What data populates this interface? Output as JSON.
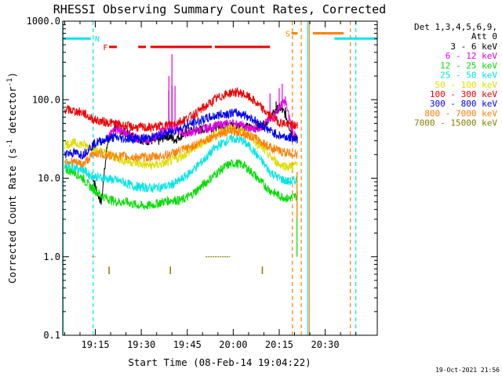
{
  "chart_data": {
    "type": "line",
    "title": "RHESSI Observing Summary Count Rates, Corrected",
    "xlabel": "Start Time (08-Feb-14 19:04:22)",
    "ylabel": "Corrected Count Rate (s⁻¹ detector⁻¹)",
    "ylabel_main": "Corrected Count Rate (s",
    "ylabel_sup1": "-1",
    "ylabel_mid": " detector",
    "ylabel_sup2": "-1",
    "ylabel_end": ")",
    "y_scale": "log",
    "ylim": [
      0.1,
      1000
    ],
    "xlim": [
      "19:04:22",
      "20:47:00"
    ],
    "x_range_minutes": [
      4.37,
      107.0
    ],
    "x_ticks": [
      {
        "m": 15,
        "label": "19:15"
      },
      {
        "m": 30,
        "label": "19:30"
      },
      {
        "m": 45,
        "label": "19:45"
      },
      {
        "m": 60,
        "label": "20:00"
      },
      {
        "m": 75,
        "label": "20:15"
      },
      {
        "m": 90,
        "label": "20:30"
      }
    ],
    "y_ticks": [
      {
        "v": 0.1,
        "label": "0.1"
      },
      {
        "v": 1,
        "label": "1.0"
      },
      {
        "v": 10,
        "label": "10.0"
      },
      {
        "v": 100,
        "label": "100.0"
      },
      {
        "v": 1000,
        "label": "1000.0"
      }
    ],
    "legend": {
      "placement": "right",
      "header1": "Det 1,3,4,5,6,9,",
      "header2": "Att 0"
    },
    "series": [
      {
        "name": "3 - 6 keV",
        "color": "#000000",
        "points": [
          [
            14,
            11
          ],
          [
            15,
            8
          ],
          [
            16,
            6
          ],
          [
            17,
            5
          ],
          [
            19,
            30
          ],
          [
            22,
            45
          ],
          [
            25,
            38
          ],
          [
            28,
            33
          ],
          [
            31,
            30
          ],
          [
            33,
            30
          ],
          [
            36,
            30
          ],
          [
            38,
            35
          ],
          [
            41,
            31
          ],
          [
            43,
            35
          ],
          [
            46,
            40
          ],
          [
            50,
            42
          ],
          [
            54,
            45
          ],
          [
            58,
            48
          ],
          [
            61,
            47
          ],
          [
            64,
            45
          ],
          [
            67,
            44
          ],
          [
            70,
            48
          ],
          [
            73,
            65
          ],
          [
            75,
            80
          ],
          [
            77,
            65
          ],
          [
            79,
            38
          ],
          [
            81,
            30
          ]
        ],
        "spikes": [
          [
            39,
            130
          ],
          [
            40,
            150
          ],
          [
            74,
            95
          ],
          [
            76,
            100
          ],
          [
            77,
            80
          ]
        ]
      },
      {
        "name": "6 - 12 keV",
        "color": "#e600e6",
        "points": [
          [
            19,
            35
          ],
          [
            22,
            42
          ],
          [
            25,
            38
          ],
          [
            28,
            33
          ],
          [
            31,
            30
          ],
          [
            34,
            32
          ],
          [
            37,
            40
          ],
          [
            40,
            45
          ],
          [
            44,
            37
          ],
          [
            48,
            40
          ],
          [
            52,
            44
          ],
          [
            56,
            48
          ],
          [
            60,
            50
          ],
          [
            63,
            46
          ],
          [
            66,
            42
          ],
          [
            69,
            45
          ],
          [
            71,
            52
          ],
          [
            73,
            60
          ],
          [
            75,
            80
          ],
          [
            77,
            95
          ],
          [
            79,
            45
          ],
          [
            81,
            28
          ]
        ],
        "spikes": [
          [
            39,
            200
          ],
          [
            40,
            380
          ],
          [
            41,
            150
          ],
          [
            75,
            140
          ],
          [
            76,
            160
          ],
          [
            77,
            110
          ],
          [
            72,
            120
          ]
        ]
      },
      {
        "name": "12 - 25 keV",
        "color": "#00dd00",
        "points": [
          [
            5,
            13
          ],
          [
            8,
            12
          ],
          [
            11,
            10
          ],
          [
            13,
            8
          ],
          [
            15,
            7
          ],
          [
            17,
            6
          ],
          [
            19,
            5.5
          ],
          [
            22,
            5
          ],
          [
            25,
            5
          ],
          [
            28,
            4.6
          ],
          [
            31,
            4.4
          ],
          [
            34,
            4.6
          ],
          [
            37,
            5
          ],
          [
            40,
            5.3
          ],
          [
            43,
            5.2
          ],
          [
            46,
            6
          ],
          [
            49,
            7.5
          ],
          [
            52,
            9.5
          ],
          [
            55,
            12
          ],
          [
            58,
            14.5
          ],
          [
            60,
            15.5
          ],
          [
            63,
            15
          ],
          [
            66,
            12
          ],
          [
            69,
            9
          ],
          [
            72,
            7
          ],
          [
            75,
            6
          ],
          [
            78,
            5.5
          ],
          [
            81,
            6
          ]
        ]
      },
      {
        "name": "25 - 50 keV",
        "color": "#00e5e5",
        "points": [
          [
            5,
            15
          ],
          [
            8,
            14
          ],
          [
            11,
            13
          ],
          [
            13,
            11
          ],
          [
            15,
            10.5
          ],
          [
            18,
            10
          ],
          [
            21,
            9.5
          ],
          [
            24,
            9
          ],
          [
            27,
            8
          ],
          [
            30,
            7.7
          ],
          [
            33,
            7.5
          ],
          [
            36,
            7.7
          ],
          [
            39,
            8
          ],
          [
            42,
            9
          ],
          [
            45,
            11
          ],
          [
            48,
            14
          ],
          [
            51,
            18
          ],
          [
            54,
            24
          ],
          [
            57,
            29
          ],
          [
            60,
            32
          ],
          [
            63,
            30
          ],
          [
            66,
            24
          ],
          [
            69,
            17
          ],
          [
            72,
            12
          ],
          [
            75,
            10
          ],
          [
            78,
            9
          ],
          [
            81,
            9.5
          ]
        ]
      },
      {
        "name": "50 - 100 keV",
        "color": "#dddd00",
        "points": [
          [
            5,
            27
          ],
          [
            8,
            28
          ],
          [
            11,
            27
          ],
          [
            13,
            25
          ],
          [
            15,
            23
          ],
          [
            18,
            21
          ],
          [
            21,
            19
          ],
          [
            24,
            17
          ],
          [
            27,
            16
          ],
          [
            30,
            15
          ],
          [
            33,
            14.5
          ],
          [
            36,
            15
          ],
          [
            39,
            16
          ],
          [
            42,
            18
          ],
          [
            45,
            21
          ],
          [
            48,
            25
          ],
          [
            51,
            30
          ],
          [
            54,
            36
          ],
          [
            57,
            41
          ],
          [
            60,
            43
          ],
          [
            63,
            40
          ],
          [
            66,
            33
          ],
          [
            69,
            25
          ],
          [
            72,
            19
          ],
          [
            75,
            15
          ],
          [
            78,
            14
          ],
          [
            81,
            15
          ]
        ]
      },
      {
        "name": "100 - 300 keV",
        "color": "#ee0000",
        "points": [
          [
            5,
            75
          ],
          [
            8,
            72
          ],
          [
            11,
            68
          ],
          [
            13,
            60
          ],
          [
            15,
            55
          ],
          [
            18,
            52
          ],
          [
            21,
            50
          ],
          [
            24,
            47
          ],
          [
            27,
            45
          ],
          [
            30,
            44
          ],
          [
            33,
            44
          ],
          [
            36,
            46
          ],
          [
            39,
            48
          ],
          [
            42,
            52
          ],
          [
            45,
            58
          ],
          [
            48,
            68
          ],
          [
            51,
            82
          ],
          [
            54,
            100
          ],
          [
            57,
            115
          ],
          [
            60,
            125
          ],
          [
            63,
            120
          ],
          [
            66,
            102
          ],
          [
            69,
            80
          ],
          [
            72,
            62
          ],
          [
            75,
            52
          ],
          [
            78,
            48
          ],
          [
            81,
            46
          ]
        ]
      },
      {
        "name": "300 - 800 keV",
        "color": "#0000ee",
        "points": [
          [
            5,
            21
          ],
          [
            8,
            21
          ],
          [
            11,
            20
          ],
          [
            13,
            24
          ],
          [
            15,
            28
          ],
          [
            18,
            31
          ],
          [
            21,
            33
          ],
          [
            24,
            32
          ],
          [
            27,
            32
          ],
          [
            30,
            32
          ],
          [
            33,
            33
          ],
          [
            36,
            35
          ],
          [
            39,
            38
          ],
          [
            42,
            42
          ],
          [
            45,
            47
          ],
          [
            48,
            52
          ],
          [
            51,
            57
          ],
          [
            54,
            62
          ],
          [
            57,
            66
          ],
          [
            60,
            68
          ],
          [
            63,
            66
          ],
          [
            66,
            58
          ],
          [
            69,
            48
          ],
          [
            72,
            40
          ],
          [
            75,
            35
          ],
          [
            78,
            33
          ],
          [
            81,
            32
          ]
        ]
      },
      {
        "name": "800 - 7000 keV",
        "color": "#ff8000",
        "points": [
          [
            5,
            17
          ],
          [
            8,
            16
          ],
          [
            11,
            15
          ],
          [
            13,
            18
          ],
          [
            15,
            21
          ],
          [
            18,
            20
          ],
          [
            21,
            19
          ],
          [
            24,
            19
          ],
          [
            27,
            18.5
          ],
          [
            30,
            18.5
          ],
          [
            33,
            18.5
          ],
          [
            36,
            19
          ],
          [
            39,
            20
          ],
          [
            42,
            22
          ],
          [
            45,
            24
          ],
          [
            48,
            27
          ],
          [
            51,
            31
          ],
          [
            54,
            35
          ],
          [
            57,
            38
          ],
          [
            60,
            40
          ],
          [
            63,
            38
          ],
          [
            66,
            34
          ],
          [
            69,
            29
          ],
          [
            72,
            25
          ],
          [
            75,
            22
          ],
          [
            78,
            21
          ],
          [
            81,
            20
          ]
        ]
      },
      {
        "name": "7000 - 15000 keV",
        "color": "#808000",
        "points": [],
        "segments": [
          [
            [
              14,
              1.0
            ],
            [
              15,
              1.0
            ]
          ],
          [
            [
              51,
              1.0
            ],
            [
              59,
              1.0
            ]
          ]
        ],
        "ticks": [
          [
            19.5,
            0.75,
            0.6
          ],
          [
            39.5,
            0.75,
            0.6
          ],
          [
            69.5,
            0.75,
            0.6
          ]
        ]
      }
    ],
    "flags": [
      {
        "label": "F",
        "color": "#ee0000"
      },
      {
        "label": "N",
        "color": "#00e5e5"
      },
      {
        "label": "S",
        "color": "#ff8000"
      }
    ],
    "flag_bars": [
      {
        "label_ref": "N",
        "color": "#00e5e5",
        "y": 600,
        "ranges": [
          [
            4.37,
            13.5
          ],
          [
            93,
            107
          ]
        ]
      },
      {
        "label_ref": "F",
        "color": "#ee0000",
        "y": 470,
        "ranges": [
          [
            19.5,
            22
          ],
          [
            29,
            31.5
          ],
          [
            33,
            53
          ],
          [
            54,
            72
          ]
        ]
      },
      {
        "label_ref": "S",
        "color": "#ff8000",
        "y": 700,
        "ranges": [
          [
            79,
            81
          ],
          [
            86,
            96
          ]
        ]
      }
    ],
    "vlines": [
      {
        "m": 4.5,
        "color": "#00e5e5",
        "style": "solid"
      },
      {
        "m": 14.3,
        "color": "#00e5e5",
        "style": "dashed"
      },
      {
        "m": 79.3,
        "color": "#ff8000",
        "style": "dashed"
      },
      {
        "m": 82.2,
        "color": "#ff8000",
        "style": "dashed"
      },
      {
        "m": 84.3,
        "color": "#00e5e5",
        "style": "solid"
      },
      {
        "m": 84.8,
        "color": "#ff8000",
        "style": "solid"
      },
      {
        "m": 98.2,
        "color": "#ff8000",
        "style": "dashed"
      },
      {
        "m": 100.0,
        "color": "#00e5e5",
        "style": "dashed"
      }
    ],
    "footer_date": "19-Oct-2021 21:56"
  }
}
